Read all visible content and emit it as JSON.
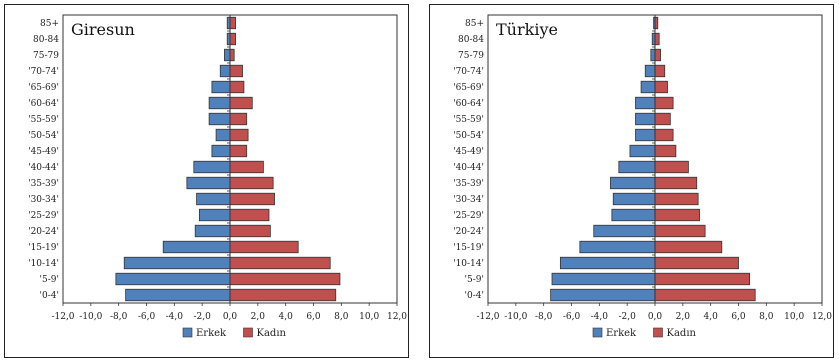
{
  "chart_data": [
    {
      "type": "bar",
      "orientation": "horizontal",
      "title": "Giresun",
      "categories": [
        "85+",
        "80-84",
        "75-79",
        "'70-74'",
        "'65-69'",
        "'60-64'",
        "'55-59'",
        "'50-54'",
        "'45-49'",
        "'40-44'",
        "'35-39'",
        "'30-34'",
        "'25-29'",
        "'20-24'",
        "'15-19'",
        "'10-14'",
        "'5-9'",
        "'0-4'"
      ],
      "series": [
        {
          "name": "Erkek",
          "color": "#4f81bd",
          "values": [
            -0.2,
            -0.2,
            -0.4,
            -0.7,
            -1.3,
            -1.5,
            -1.5,
            -1.0,
            -1.3,
            -2.6,
            -3.1,
            -2.4,
            -2.2,
            -2.5,
            -4.8,
            -7.6,
            -8.2,
            -7.5
          ]
        },
        {
          "name": "Kadın",
          "color": "#c0504d",
          "values": [
            0.4,
            0.4,
            0.3,
            0.9,
            1.0,
            1.6,
            1.2,
            1.3,
            1.2,
            2.4,
            3.1,
            3.2,
            2.8,
            2.9,
            4.9,
            7.2,
            7.9,
            7.6
          ]
        }
      ],
      "xlim": [
        -12,
        12
      ],
      "xticks": [
        "-12,0",
        "-10,0",
        "-8,0",
        "-6,0",
        "-4,0",
        "-2,0",
        "0,0",
        "2,0",
        "4,0",
        "6,0",
        "8,0",
        "10,0",
        "12,0"
      ],
      "legend": "bottom",
      "grid": false
    },
    {
      "type": "bar",
      "orientation": "horizontal",
      "title": "Türkiye",
      "categories": [
        "85+",
        "80-84",
        "75-79",
        "'70-74'",
        "'65-69'",
        "'60-64'",
        "'55-59'",
        "'50-54'",
        "'45-49'",
        "'40-44'",
        "'35-39'",
        "'30-34'",
        "'25-29'",
        "'20-24'",
        "'15-19'",
        "'10-14'",
        "'5-9'",
        "'0-4'"
      ],
      "series": [
        {
          "name": "Erkek",
          "color": "#4f81bd",
          "values": [
            -0.1,
            -0.2,
            -0.3,
            -0.7,
            -1.0,
            -1.4,
            -1.4,
            -1.4,
            -1.8,
            -2.6,
            -3.2,
            -3.0,
            -3.1,
            -4.4,
            -5.4,
            -6.8,
            -7.4,
            -7.5
          ]
        },
        {
          "name": "Kadın",
          "color": "#c0504d",
          "values": [
            0.2,
            0.3,
            0.4,
            0.7,
            0.9,
            1.3,
            1.1,
            1.3,
            1.5,
            2.4,
            3.0,
            3.1,
            3.2,
            3.6,
            4.8,
            6.0,
            6.8,
            7.2
          ]
        }
      ],
      "xlim": [
        -12,
        12
      ],
      "xticks": [
        "-12,0",
        "-10,0",
        "-8,0",
        "-6,0",
        "-4,0",
        "-2,0",
        "0,0",
        "2,0",
        "4,0",
        "6,0",
        "8,0",
        "10,0",
        "12,0"
      ],
      "legend": "bottom",
      "grid": false
    }
  ]
}
